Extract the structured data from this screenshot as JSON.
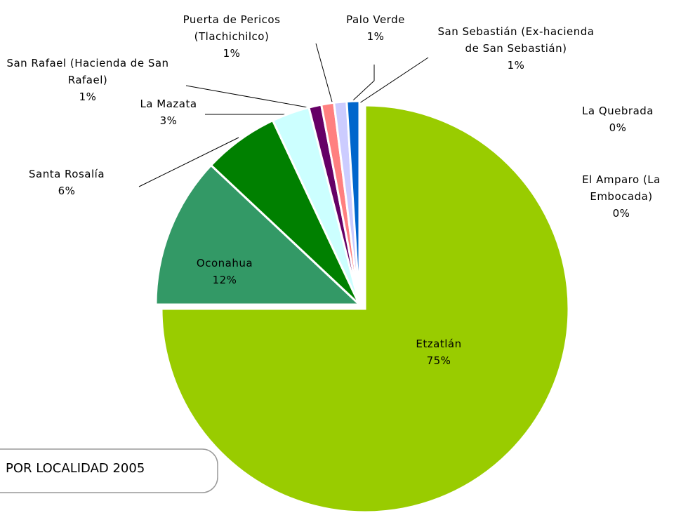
{
  "chart_data": {
    "type": "pie",
    "title": "POR LOCALIDAD 2005",
    "categories": [
      "Etzatlán",
      "Oconahua",
      "Santa Rosalía",
      "La Mazata",
      "San Rafael (Hacienda de San Rafael)",
      "Puerta de Pericos (Tlachichilco)",
      "Palo Verde",
      "San Sebastián (Ex-hacienda de San Sebastián)",
      "La Quebrada",
      "El Amparo (La Embocada)"
    ],
    "values": [
      75,
      12,
      6,
      3,
      1,
      1,
      1,
      1,
      0,
      0
    ],
    "value_labels": [
      "75%",
      "12%",
      "6%",
      "3%",
      "1%",
      "1%",
      "1%",
      "1%",
      "0%",
      "0%"
    ],
    "colors": [
      "#99cc00",
      "#339966",
      "#008000",
      "#ccffff",
      "#660066",
      "#ff8080",
      "#ccccff",
      "#0066cc",
      "#c0c0c0",
      "#000080"
    ]
  }
}
